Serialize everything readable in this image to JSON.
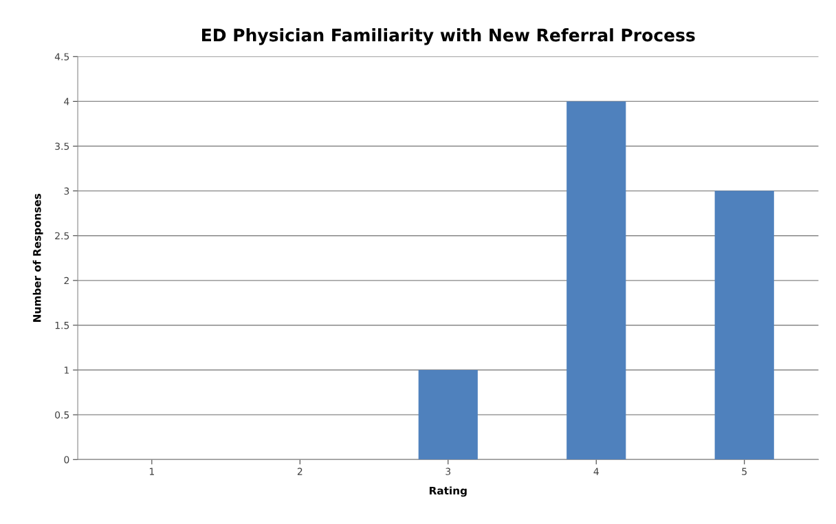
{
  "chart_data": {
    "type": "bar",
    "title": "ED Physician Familiarity with New Referral Process",
    "xlabel": "Rating",
    "ylabel": "Number of Responses",
    "categories": [
      "1",
      "2",
      "3",
      "4",
      "5"
    ],
    "values": [
      0,
      0,
      1,
      4,
      3
    ],
    "color": "#4f81bd",
    "ylim": [
      0,
      4.5
    ],
    "yticks": [
      0,
      0.5,
      1,
      1.5,
      2,
      2.5,
      3,
      3.5,
      4,
      4.5
    ],
    "grid": "y",
    "legend": false
  }
}
